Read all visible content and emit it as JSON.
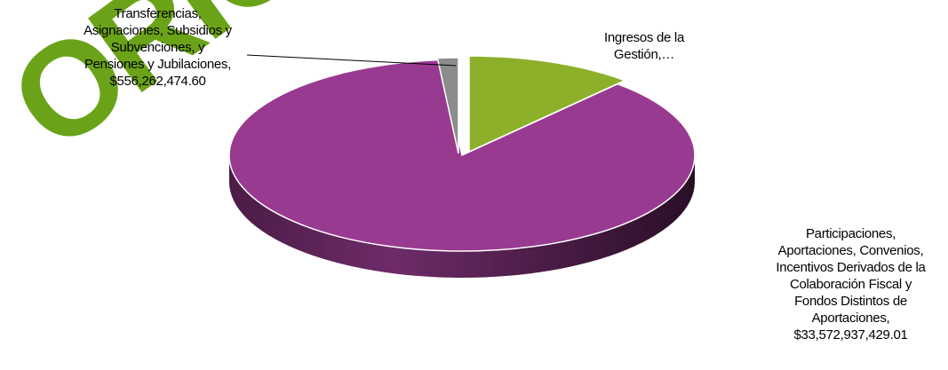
{
  "chart_data": {
    "type": "pie",
    "style": "3d-exploded",
    "slices": [
      {
        "label": "Ingresos de la Gestión,…",
        "label_lines": [
          "Ingresos de la",
          "Gestión,…"
        ],
        "value": 4500000000,
        "color": "#8cb02a"
      },
      {
        "label": "Transferencias, Asignaciones, Subsidios y Subvenciones, y Pensiones y Jubilaciones, $556,262,474.60",
        "label_lines": [
          "Transferencias,",
          "Asignaciones, Subsidios y",
          "Subvenciones, y",
          "Pensiones y Jubilaciones,",
          "$556,262,474.60"
        ],
        "value": 556262474.6,
        "color": "#8c8c8c"
      },
      {
        "label": "Participaciones, Aportaciones, Convenios, Incentivos Derivados de la Colaboración Fiscal y Fondos Distintos de Aportaciones, $33,572,937,429.01",
        "label_lines": [
          "Participaciones,",
          "Aportaciones, Convenios,",
          "Incentivos Derivados de la",
          "Colaboración Fiscal y",
          "Fondos Distintos de",
          "Aportaciones,",
          "$33,572,937,429.01"
        ],
        "value": 33572937429.01,
        "color": "#993a91"
      }
    ],
    "legend": "none"
  },
  "watermark": {
    "text": "ORIGINAL",
    "color": "#6aa317"
  }
}
